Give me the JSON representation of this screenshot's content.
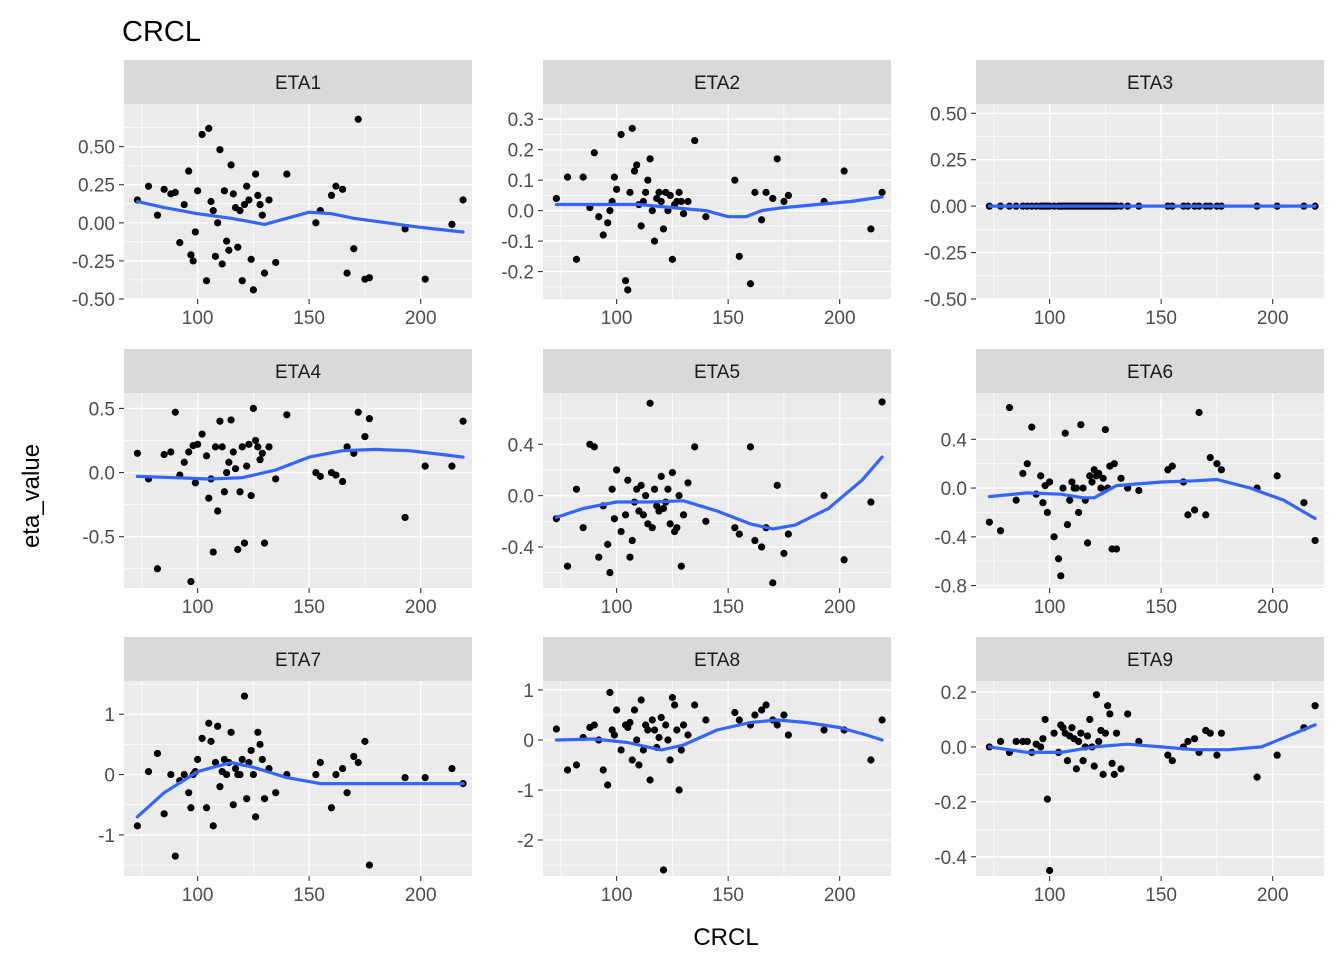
{
  "chart_data": {
    "type": "scatter",
    "title": "CRCL",
    "xlabel": "CRCL",
    "ylabel": "eta_value",
    "xlim": [
      67,
      223
    ],
    "x_ticks": [
      100,
      150,
      200
    ],
    "x_tick_labels": [
      "100",
      "150",
      "200"
    ],
    "grid": true,
    "layout": "3x3 facets",
    "colors": {
      "points": "#000000",
      "smooth": "#3366ff",
      "panel": "#ebebeb",
      "strip": "#d9d9d9"
    },
    "x": [
      73,
      78,
      82,
      85,
      88,
      90,
      92,
      94,
      96,
      97,
      98,
      99,
      100,
      102,
      104,
      105,
      106,
      107,
      108,
      109,
      110,
      111,
      112,
      113,
      114,
      115,
      116,
      117,
      118,
      119,
      120,
      121,
      122,
      123,
      124,
      125,
      126,
      127,
      128,
      129,
      130,
      132,
      135,
      140,
      153,
      155,
      160,
      162,
      165,
      167,
      170,
      172,
      175,
      177,
      193,
      202,
      214,
      219
    ],
    "panels": [
      {
        "name": "ETA1",
        "ylim": [
          -0.5,
          0.78
        ],
        "y_ticks": [
          -0.5,
          -0.25,
          0,
          0.25,
          0.5
        ],
        "y_tick_labels": [
          "-0.50",
          "-0.25",
          "0.00",
          "0.25",
          "0.50"
        ],
        "y": [
          0.15,
          0.24,
          0.05,
          0.22,
          0.19,
          0.2,
          -0.13,
          0.12,
          0.34,
          -0.21,
          -0.25,
          -0.06,
          0.21,
          0.58,
          -0.38,
          0.62,
          0.14,
          0.08,
          -0.22,
          0.0,
          0.48,
          -0.27,
          0.21,
          -0.12,
          -0.18,
          0.38,
          0.19,
          0.1,
          -0.16,
          0.08,
          -0.38,
          0.12,
          0.24,
          0.15,
          -0.24,
          -0.44,
          0.32,
          0.18,
          0.12,
          0.05,
          -0.33,
          0.15,
          -0.26,
          0.32,
          0.0,
          0.08,
          0.18,
          0.24,
          0.22,
          -0.33,
          -0.17,
          0.68,
          -0.37,
          -0.36,
          -0.04,
          -0.37,
          -0.01,
          0.15
        ],
        "smooth": [
          [
            73,
            0.14
          ],
          [
            85,
            0.1
          ],
          [
            100,
            0.06
          ],
          [
            115,
            0.03
          ],
          [
            130,
            -0.01
          ],
          [
            140,
            0.03
          ],
          [
            150,
            0.07
          ],
          [
            160,
            0.06
          ],
          [
            170,
            0.03
          ],
          [
            185,
            0.0
          ],
          [
            200,
            -0.03
          ],
          [
            219,
            -0.06
          ]
        ]
      },
      {
        "name": "ETA2",
        "ylim": [
          -0.29,
          0.35
        ],
        "y_ticks": [
          -0.2,
          -0.1,
          0,
          0.1,
          0.2,
          0.3
        ],
        "y_tick_labels": [
          "-0.2",
          "-0.1",
          "0.0",
          "0.1",
          "0.2",
          "0.3"
        ],
        "y": [
          0.04,
          0.11,
          -0.16,
          0.11,
          0.01,
          0.19,
          -0.02,
          -0.08,
          -0.04,
          0.0,
          0.03,
          0.11,
          0.07,
          0.25,
          -0.23,
          -0.26,
          0.06,
          0.27,
          0.13,
          0.15,
          0.02,
          -0.05,
          0.03,
          0.06,
          0.1,
          0.17,
          0.0,
          -0.1,
          0.04,
          0.06,
          0.03,
          -0.06,
          0.06,
          0.0,
          0.05,
          -0.16,
          0.02,
          0.03,
          0.06,
          0.03,
          -0.01,
          0.03,
          0.23,
          -0.02,
          0.1,
          -0.15,
          -0.24,
          0.06,
          -0.03,
          0.06,
          0.04,
          0.17,
          0.03,
          0.05,
          0.03,
          0.13,
          -0.06,
          0.06
        ],
        "smooth": [
          [
            73,
            0.02
          ],
          [
            90,
            0.02
          ],
          [
            110,
            0.02
          ],
          [
            125,
            0.01
          ],
          [
            140,
            0.0
          ],
          [
            150,
            -0.02
          ],
          [
            158,
            -0.02
          ],
          [
            165,
            0.0
          ],
          [
            175,
            0.01
          ],
          [
            190,
            0.02
          ],
          [
            205,
            0.03
          ],
          [
            219,
            0.045
          ]
        ]
      },
      {
        "name": "ETA3",
        "ylim": [
          -0.5,
          0.55
        ],
        "y_ticks": [
          -0.5,
          -0.25,
          0,
          0.25,
          0.5
        ],
        "y_tick_labels": [
          "-0.50",
          "-0.25",
          "0.00",
          "0.25",
          "0.50"
        ],
        "y": [
          0,
          0,
          0,
          0,
          0,
          0,
          0,
          0,
          0,
          0,
          0,
          0,
          0,
          0,
          0,
          0,
          0,
          0,
          0,
          0,
          0,
          0,
          0,
          0,
          0,
          0,
          0,
          0,
          0,
          0,
          0,
          0,
          0,
          0,
          0,
          0,
          0,
          0,
          0,
          0,
          0,
          0,
          0,
          0,
          0,
          0,
          0,
          0,
          0,
          0,
          0,
          0,
          0,
          0,
          0,
          0,
          0,
          0
        ],
        "smooth": [
          [
            73,
            0
          ],
          [
            219,
            0
          ]
        ]
      },
      {
        "name": "ETA4",
        "ylim": [
          -0.9,
          0.62
        ],
        "y_ticks": [
          -0.5,
          0,
          0.5
        ],
        "y_tick_labels": [
          "-0.5",
          "0.0",
          "0.5"
        ],
        "y": [
          0.15,
          -0.05,
          -0.75,
          0.14,
          0.16,
          0.47,
          -0.02,
          0.08,
          0.16,
          -0.85,
          0.21,
          -0.08,
          0.22,
          0.3,
          0.13,
          -0.2,
          -0.05,
          -0.62,
          0.2,
          -0.3,
          0.4,
          0.2,
          -0.15,
          0.0,
          0.08,
          0.41,
          0.16,
          0.03,
          -0.6,
          -0.15,
          0.2,
          -0.55,
          0.05,
          0.22,
          -0.18,
          0.5,
          0.25,
          0.2,
          0.1,
          0.15,
          -0.55,
          0.2,
          -0.05,
          0.45,
          0.0,
          -0.03,
          0.0,
          -0.02,
          -0.07,
          0.2,
          0.15,
          0.47,
          0.28,
          0.42,
          -0.35,
          0.05,
          0.05,
          0.4
        ],
        "smooth": [
          [
            73,
            -0.03
          ],
          [
            90,
            -0.04
          ],
          [
            105,
            -0.05
          ],
          [
            120,
            -0.04
          ],
          [
            135,
            0.02
          ],
          [
            150,
            0.12
          ],
          [
            165,
            0.17
          ],
          [
            180,
            0.18
          ],
          [
            195,
            0.17
          ],
          [
            210,
            0.14
          ],
          [
            219,
            0.12
          ]
        ]
      },
      {
        "name": "ETA5",
        "ylim": [
          -0.72,
          0.8
        ],
        "y_ticks": [
          -0.4,
          0,
          0.4
        ],
        "y_tick_labels": [
          "-0.4",
          "0.0",
          "0.4"
        ],
        "y": [
          -0.18,
          -0.55,
          0.05,
          -0.25,
          0.4,
          0.38,
          -0.48,
          -0.08,
          -0.38,
          -0.6,
          0.05,
          -0.18,
          0.2,
          -0.28,
          -0.15,
          0.12,
          -0.48,
          -0.35,
          -0.05,
          0.05,
          -0.12,
          0.08,
          -0.15,
          0.0,
          -0.22,
          0.72,
          -0.25,
          0.05,
          -0.08,
          -0.12,
          0.15,
          -0.1,
          -0.05,
          0.05,
          -0.22,
          0.18,
          -0.28,
          -0.25,
          0.0,
          -0.55,
          -0.15,
          0.1,
          0.38,
          -0.2,
          -0.25,
          -0.3,
          0.38,
          -0.35,
          -0.4,
          -0.25,
          -0.68,
          0.08,
          -0.45,
          -0.3,
          0.0,
          -0.5,
          -0.05,
          0.73
        ],
        "smooth": [
          [
            73,
            -0.17
          ],
          [
            85,
            -0.1
          ],
          [
            100,
            -0.05
          ],
          [
            115,
            -0.05
          ],
          [
            130,
            -0.04
          ],
          [
            145,
            -0.12
          ],
          [
            160,
            -0.22
          ],
          [
            170,
            -0.26
          ],
          [
            180,
            -0.23
          ],
          [
            195,
            -0.1
          ],
          [
            210,
            0.12
          ],
          [
            219,
            0.3
          ]
        ]
      },
      {
        "name": "ETA6",
        "ylim": [
          -0.82,
          0.78
        ],
        "y_ticks": [
          -0.8,
          -0.4,
          0,
          0.4
        ],
        "y_tick_labels": [
          "-0.8",
          "-0.4",
          "0.0",
          "0.4"
        ],
        "y": [
          -0.28,
          -0.35,
          0.66,
          -0.1,
          0.12,
          0.2,
          0.5,
          -0.05,
          0.1,
          -0.12,
          0.02,
          -0.2,
          0.05,
          -0.4,
          -0.58,
          -0.72,
          0.0,
          0.45,
          -0.3,
          -0.1,
          0.05,
          0.0,
          0.0,
          -0.2,
          0.52,
          0.0,
          -0.1,
          -0.45,
          0.1,
          0.05,
          0.15,
          0.1,
          0.12,
          0.0,
          0.08,
          0.48,
          0.0,
          0.18,
          -0.5,
          0.2,
          -0.5,
          0.08,
          0.0,
          -0.02,
          0.15,
          0.18,
          0.05,
          -0.22,
          -0.18,
          0.62,
          -0.22,
          0.25,
          0.2,
          0.15,
          0.0,
          0.1,
          -0.12,
          -0.43
        ],
        "smooth": [
          [
            73,
            -0.07
          ],
          [
            90,
            -0.04
          ],
          [
            105,
            -0.05
          ],
          [
            115,
            -0.08
          ],
          [
            120,
            -0.08
          ],
          [
            130,
            0.02
          ],
          [
            150,
            0.05
          ],
          [
            165,
            0.06
          ],
          [
            175,
            0.07
          ],
          [
            190,
            0.0
          ],
          [
            205,
            -0.1
          ],
          [
            219,
            -0.25
          ]
        ]
      },
      {
        "name": "ETA7",
        "ylim": [
          -1.68,
          1.55
        ],
        "y_ticks": [
          -1,
          0,
          1
        ],
        "y_tick_labels": [
          "-1",
          "0",
          "1"
        ],
        "y": [
          -0.85,
          0.05,
          0.35,
          -0.65,
          0.0,
          -1.35,
          -0.1,
          0.0,
          -0.3,
          -0.55,
          0.0,
          0.05,
          0.25,
          0.6,
          -0.55,
          0.85,
          0.55,
          -0.85,
          0.2,
          0.8,
          -0.2,
          0.05,
          0.25,
          0.0,
          0.2,
          0.7,
          -0.5,
          0.1,
          0.0,
          0.0,
          0.25,
          1.3,
          -0.4,
          0.2,
          0.4,
          0.0,
          -0.7,
          0.7,
          0.5,
          0.25,
          -0.4,
          0.1,
          -0.3,
          0.0,
          0.0,
          0.2,
          -0.55,
          0.0,
          0.1,
          -0.3,
          0.3,
          0.2,
          0.55,
          -1.5,
          -0.05,
          -0.05,
          0.1,
          -0.15
        ],
        "smooth": [
          [
            73,
            -0.7
          ],
          [
            85,
            -0.3
          ],
          [
            100,
            0.05
          ],
          [
            115,
            0.2
          ],
          [
            125,
            0.12
          ],
          [
            140,
            -0.05
          ],
          [
            155,
            -0.15
          ],
          [
            175,
            -0.15
          ],
          [
            200,
            -0.15
          ],
          [
            219,
            -0.15
          ]
        ]
      },
      {
        "name": "ETA8",
        "ylim": [
          -2.72,
          1.18
        ],
        "y_ticks": [
          -2,
          -1,
          0,
          1
        ],
        "y_tick_labels": [
          "-2",
          "-1",
          "0",
          "1"
        ],
        "y": [
          0.22,
          -0.6,
          -0.5,
          0.05,
          0.25,
          0.3,
          0.0,
          -0.6,
          -0.9,
          0.95,
          0.2,
          0.1,
          0.6,
          -0.2,
          0.3,
          0.25,
          0.35,
          -0.4,
          0.6,
          0.0,
          -0.5,
          0.8,
          -0.2,
          0.3,
          0.2,
          -0.8,
          0.4,
          0.2,
          -0.15,
          0.05,
          0.45,
          -2.6,
          0.3,
          0.0,
          -0.4,
          0.85,
          0.7,
          0.2,
          -1.0,
          -0.2,
          0.3,
          0.1,
          0.7,
          0.4,
          0.55,
          0.4,
          0.3,
          0.5,
          0.6,
          0.7,
          0.4,
          0.3,
          0.5,
          0.1,
          0.2,
          0.2,
          -0.4,
          0.4
        ],
        "smooth": [
          [
            73,
            0.0
          ],
          [
            90,
            0.02
          ],
          [
            105,
            -0.05
          ],
          [
            120,
            -0.2
          ],
          [
            130,
            -0.1
          ],
          [
            145,
            0.2
          ],
          [
            160,
            0.35
          ],
          [
            172,
            0.4
          ],
          [
            185,
            0.35
          ],
          [
            200,
            0.25
          ],
          [
            212,
            0.1
          ],
          [
            219,
            0.0
          ]
        ]
      },
      {
        "name": "ETA9",
        "ylim": [
          -0.47,
          0.24
        ],
        "y_ticks": [
          -0.4,
          -0.2,
          0,
          0.2
        ],
        "y_tick_labels": [
          "-0.4",
          "-0.2",
          "0.0",
          "0.2"
        ],
        "y": [
          0.0,
          0.02,
          -0.02,
          0.02,
          0.02,
          0.02,
          -0.02,
          0.01,
          0.0,
          0.03,
          0.1,
          -0.19,
          -0.45,
          0.05,
          -0.02,
          0.08,
          0.07,
          0.05,
          -0.05,
          0.04,
          0.07,
          0.03,
          -0.08,
          0.02,
          0.05,
          -0.05,
          0.0,
          0.04,
          0.1,
          0.0,
          -0.07,
          0.19,
          0.02,
          0.06,
          -0.1,
          0.05,
          0.15,
          0.12,
          -0.06,
          -0.1,
          0.05,
          -0.08,
          0.12,
          0.02,
          -0.03,
          -0.05,
          0.0,
          0.02,
          0.03,
          -0.02,
          0.06,
          0.05,
          -0.03,
          0.05,
          -0.11,
          -0.03,
          0.07,
          0.15
        ],
        "smooth": [
          [
            73,
            0.0
          ],
          [
            90,
            -0.02
          ],
          [
            105,
            -0.02
          ],
          [
            120,
            0.0
          ],
          [
            135,
            0.01
          ],
          [
            150,
            0.0
          ],
          [
            165,
            -0.01
          ],
          [
            180,
            -0.01
          ],
          [
            195,
            0.0
          ],
          [
            210,
            0.05
          ],
          [
            219,
            0.08
          ]
        ]
      }
    ]
  }
}
